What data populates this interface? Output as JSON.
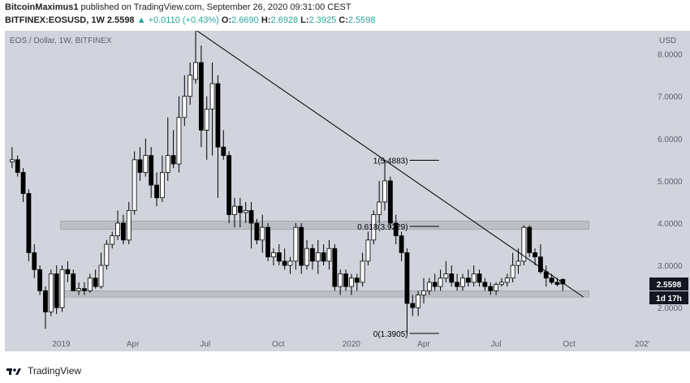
{
  "header": {
    "author": "BitcoinMaximus1",
    "published_text": "published on TradingView.com, September 26, 2020 09:31:00 CEST",
    "symbol": "BITFINEX:EOSUSD, 1W",
    "last": "2.5598",
    "arrow": "▲",
    "change": "+0.0110 (+0.43%)",
    "open_label": "O:",
    "open": "2.6690",
    "high_label": "H:",
    "high": "2.6928",
    "low_label": "L:",
    "low": "2.3925",
    "close_label": "C:",
    "close": "2.5598"
  },
  "footer": {
    "brand": "TradingView"
  },
  "colors": {
    "plot_bg": "#d1d4dc",
    "candle_up": "#ffffff",
    "candle_down": "#000000",
    "zone": "#bdbfc6",
    "price_tag_bg": "#131722",
    "accent_green": "#26a69a"
  },
  "chart_data": {
    "type": "candlestick",
    "title": "EOS / Dollar, 1W, BITFINEX",
    "currency_label": "USD",
    "y_ticks": [
      2.0,
      3.0,
      4.0,
      5.0,
      6.0,
      7.0,
      8.0
    ],
    "y_tick_labels": [
      "2.0000",
      "3.0000",
      "4.0000",
      "5.0000",
      "6.0000",
      "7.0000",
      "8.0000"
    ],
    "ylim": [
      1.35,
      8.55
    ],
    "x_ticks": [
      {
        "date": "2019-01-01",
        "label": "2019"
      },
      {
        "date": "2019-04-01",
        "label": "Apr"
      },
      {
        "date": "2019-07-01",
        "label": "Jul"
      },
      {
        "date": "2019-10-01",
        "label": "Oct"
      },
      {
        "date": "2020-01-01",
        "label": "2020"
      },
      {
        "date": "2020-04-01",
        "label": "Apr"
      },
      {
        "date": "2020-07-01",
        "label": "Jul"
      },
      {
        "date": "2020-10-01",
        "label": "Oct"
      },
      {
        "date": "2021-01-01",
        "label": "202'"
      }
    ],
    "xlim": [
      "2018-10-22",
      "2021-01-10"
    ],
    "last_price_label": "2.5598",
    "countdown_label": "1d 17h",
    "candles": [
      {
        "date": "2018-10-29",
        "o": 5.45,
        "h": 5.8,
        "l": 5.3,
        "c": 5.5
      },
      {
        "date": "2018-11-05",
        "o": 5.5,
        "h": 5.6,
        "l": 5.1,
        "c": 5.2
      },
      {
        "date": "2018-11-12",
        "o": 5.2,
        "h": 5.3,
        "l": 4.5,
        "c": 4.7
      },
      {
        "date": "2018-11-19",
        "o": 4.7,
        "h": 4.8,
        "l": 3.1,
        "c": 3.3
      },
      {
        "date": "2018-11-26",
        "o": 3.3,
        "h": 3.5,
        "l": 2.7,
        "c": 2.9
      },
      {
        "date": "2018-12-03",
        "o": 2.9,
        "h": 3.0,
        "l": 2.3,
        "c": 2.4
      },
      {
        "date": "2018-12-10",
        "o": 2.4,
        "h": 2.5,
        "l": 1.5,
        "c": 1.9
      },
      {
        "date": "2018-12-17",
        "o": 1.9,
        "h": 2.9,
        "l": 1.8,
        "c": 2.8
      },
      {
        "date": "2018-12-24",
        "o": 2.8,
        "h": 3.0,
        "l": 1.85,
        "c": 2.0
      },
      {
        "date": "2018-12-31",
        "o": 2.0,
        "h": 3.0,
        "l": 1.9,
        "c": 2.9
      },
      {
        "date": "2019-01-07",
        "o": 2.9,
        "h": 3.1,
        "l": 2.6,
        "c": 2.8
      },
      {
        "date": "2019-01-14",
        "o": 2.8,
        "h": 2.9,
        "l": 2.4,
        "c": 2.4
      },
      {
        "date": "2019-01-21",
        "o": 2.4,
        "h": 2.6,
        "l": 2.3,
        "c": 2.45
      },
      {
        "date": "2019-01-28",
        "o": 2.45,
        "h": 2.6,
        "l": 2.3,
        "c": 2.4
      },
      {
        "date": "2019-02-04",
        "o": 2.4,
        "h": 2.8,
        "l": 2.35,
        "c": 2.7
      },
      {
        "date": "2019-02-11",
        "o": 2.7,
        "h": 2.9,
        "l": 2.45,
        "c": 2.5
      },
      {
        "date": "2019-02-18",
        "o": 2.5,
        "h": 3.3,
        "l": 2.45,
        "c": 3.0
      },
      {
        "date": "2019-02-25",
        "o": 3.0,
        "h": 3.6,
        "l": 2.9,
        "c": 3.5
      },
      {
        "date": "2019-03-04",
        "o": 3.5,
        "h": 3.8,
        "l": 3.4,
        "c": 3.7
      },
      {
        "date": "2019-03-11",
        "o": 3.7,
        "h": 4.3,
        "l": 3.6,
        "c": 4.0
      },
      {
        "date": "2019-03-18",
        "o": 4.0,
        "h": 4.2,
        "l": 3.5,
        "c": 3.6
      },
      {
        "date": "2019-03-25",
        "o": 3.6,
        "h": 4.5,
        "l": 3.5,
        "c": 4.3
      },
      {
        "date": "2019-04-01",
        "o": 4.3,
        "h": 5.7,
        "l": 4.2,
        "c": 5.5
      },
      {
        "date": "2019-04-08",
        "o": 5.5,
        "h": 5.8,
        "l": 5.0,
        "c": 5.2
      },
      {
        "date": "2019-04-15",
        "o": 5.2,
        "h": 6.0,
        "l": 5.1,
        "c": 5.6
      },
      {
        "date": "2019-04-22",
        "o": 5.6,
        "h": 5.8,
        "l": 4.6,
        "c": 4.9
      },
      {
        "date": "2019-04-29",
        "o": 4.9,
        "h": 5.2,
        "l": 4.4,
        "c": 4.6
      },
      {
        "date": "2019-05-06",
        "o": 4.6,
        "h": 5.6,
        "l": 4.5,
        "c": 5.2
      },
      {
        "date": "2019-05-13",
        "o": 5.2,
        "h": 6.5,
        "l": 5.0,
        "c": 5.6
      },
      {
        "date": "2019-05-20",
        "o": 5.6,
        "h": 6.2,
        "l": 5.3,
        "c": 5.4
      },
      {
        "date": "2019-05-27",
        "o": 5.4,
        "h": 7.0,
        "l": 5.2,
        "c": 6.5
      },
      {
        "date": "2019-06-03",
        "o": 6.5,
        "h": 7.5,
        "l": 6.3,
        "c": 7.0
      },
      {
        "date": "2019-06-10",
        "o": 7.0,
        "h": 7.8,
        "l": 6.8,
        "c": 7.5
      },
      {
        "date": "2019-06-17",
        "o": 7.4,
        "h": 8.6,
        "l": 7.3,
        "c": 7.8
      },
      {
        "date": "2019-06-24",
        "o": 7.8,
        "h": 8.2,
        "l": 5.8,
        "c": 6.2
      },
      {
        "date": "2019-07-01",
        "o": 6.2,
        "h": 7.0,
        "l": 5.5,
        "c": 6.7
      },
      {
        "date": "2019-07-08",
        "o": 6.7,
        "h": 7.8,
        "l": 5.6,
        "c": 7.3
      },
      {
        "date": "2019-07-15",
        "o": 7.3,
        "h": 7.5,
        "l": 4.6,
        "c": 5.8
      },
      {
        "date": "2019-07-22",
        "o": 5.8,
        "h": 6.2,
        "l": 5.5,
        "c": 5.6
      },
      {
        "date": "2019-07-29",
        "o": 5.6,
        "h": 5.7,
        "l": 4.0,
        "c": 4.2
      },
      {
        "date": "2019-08-05",
        "o": 4.2,
        "h": 4.6,
        "l": 3.9,
        "c": 4.4
      },
      {
        "date": "2019-08-12",
        "o": 4.4,
        "h": 4.6,
        "l": 3.9,
        "c": 4.25
      },
      {
        "date": "2019-08-19",
        "o": 4.25,
        "h": 4.5,
        "l": 4.0,
        "c": 4.3
      },
      {
        "date": "2019-08-26",
        "o": 4.3,
        "h": 4.5,
        "l": 3.4,
        "c": 4.0
      },
      {
        "date": "2019-09-02",
        "o": 4.0,
        "h": 4.1,
        "l": 3.5,
        "c": 3.6
      },
      {
        "date": "2019-09-09",
        "o": 3.6,
        "h": 4.2,
        "l": 3.3,
        "c": 3.9
      },
      {
        "date": "2019-09-16",
        "o": 3.9,
        "h": 4.0,
        "l": 3.1,
        "c": 3.2
      },
      {
        "date": "2019-09-23",
        "o": 3.2,
        "h": 3.4,
        "l": 3.0,
        "c": 3.3
      },
      {
        "date": "2019-09-30",
        "o": 3.3,
        "h": 3.5,
        "l": 3.0,
        "c": 3.1
      },
      {
        "date": "2019-10-07",
        "o": 3.1,
        "h": 3.4,
        "l": 2.9,
        "c": 3.0
      },
      {
        "date": "2019-10-14",
        "o": 3.0,
        "h": 3.2,
        "l": 2.8,
        "c": 3.1
      },
      {
        "date": "2019-10-21",
        "o": 3.1,
        "h": 4.0,
        "l": 2.9,
        "c": 3.9
      },
      {
        "date": "2019-10-28",
        "o": 3.9,
        "h": 4.0,
        "l": 2.8,
        "c": 3.0
      },
      {
        "date": "2019-11-04",
        "o": 3.0,
        "h": 3.6,
        "l": 2.9,
        "c": 3.4
      },
      {
        "date": "2019-11-11",
        "o": 3.4,
        "h": 3.5,
        "l": 2.9,
        "c": 3.1
      },
      {
        "date": "2019-11-18",
        "o": 3.1,
        "h": 3.6,
        "l": 2.8,
        "c": 3.3
      },
      {
        "date": "2019-11-25",
        "o": 3.3,
        "h": 3.5,
        "l": 3.0,
        "c": 3.1
      },
      {
        "date": "2019-12-02",
        "o": 3.1,
        "h": 3.6,
        "l": 2.9,
        "c": 3.4
      },
      {
        "date": "2019-12-09",
        "o": 3.4,
        "h": 3.5,
        "l": 2.4,
        "c": 2.5
      },
      {
        "date": "2019-12-16",
        "o": 2.5,
        "h": 2.9,
        "l": 2.3,
        "c": 2.8
      },
      {
        "date": "2019-12-23",
        "o": 2.8,
        "h": 2.9,
        "l": 2.4,
        "c": 2.5
      },
      {
        "date": "2019-12-30",
        "o": 2.5,
        "h": 2.8,
        "l": 2.3,
        "c": 2.7
      },
      {
        "date": "2020-01-06",
        "o": 2.7,
        "h": 2.8,
        "l": 2.4,
        "c": 2.6
      },
      {
        "date": "2020-01-13",
        "o": 2.6,
        "h": 3.3,
        "l": 2.5,
        "c": 3.1
      },
      {
        "date": "2020-01-20",
        "o": 3.1,
        "h": 3.8,
        "l": 3.0,
        "c": 3.6
      },
      {
        "date": "2020-01-27",
        "o": 3.6,
        "h": 4.3,
        "l": 3.5,
        "c": 4.2
      },
      {
        "date": "2020-02-03",
        "o": 4.2,
        "h": 5.0,
        "l": 4.0,
        "c": 4.5
      },
      {
        "date": "2020-02-10",
        "o": 4.5,
        "h": 5.49,
        "l": 4.3,
        "c": 5.0
      },
      {
        "date": "2020-02-17",
        "o": 5.0,
        "h": 5.1,
        "l": 3.9,
        "c": 4.0
      },
      {
        "date": "2020-02-24",
        "o": 4.0,
        "h": 4.2,
        "l": 3.5,
        "c": 3.7
      },
      {
        "date": "2020-03-02",
        "o": 3.7,
        "h": 3.8,
        "l": 3.1,
        "c": 3.3
      },
      {
        "date": "2020-03-09",
        "o": 3.3,
        "h": 3.4,
        "l": 1.39,
        "c": 2.1
      },
      {
        "date": "2020-03-16",
        "o": 2.1,
        "h": 2.3,
        "l": 1.8,
        "c": 2.0
      },
      {
        "date": "2020-03-23",
        "o": 2.0,
        "h": 2.4,
        "l": 1.8,
        "c": 2.3
      },
      {
        "date": "2020-03-30",
        "o": 2.3,
        "h": 2.7,
        "l": 2.1,
        "c": 2.4
      },
      {
        "date": "2020-04-06",
        "o": 2.4,
        "h": 2.7,
        "l": 2.3,
        "c": 2.6
      },
      {
        "date": "2020-04-13",
        "o": 2.6,
        "h": 2.8,
        "l": 2.4,
        "c": 2.5
      },
      {
        "date": "2020-04-20",
        "o": 2.5,
        "h": 2.9,
        "l": 2.4,
        "c": 2.7
      },
      {
        "date": "2020-04-27",
        "o": 2.7,
        "h": 3.1,
        "l": 2.6,
        "c": 2.8
      },
      {
        "date": "2020-05-04",
        "o": 2.8,
        "h": 3.0,
        "l": 2.5,
        "c": 2.6
      },
      {
        "date": "2020-05-11",
        "o": 2.6,
        "h": 2.8,
        "l": 2.4,
        "c": 2.5
      },
      {
        "date": "2020-05-18",
        "o": 2.5,
        "h": 2.8,
        "l": 2.4,
        "c": 2.7
      },
      {
        "date": "2020-05-25",
        "o": 2.7,
        "h": 2.9,
        "l": 2.5,
        "c": 2.6
      },
      {
        "date": "2020-06-01",
        "o": 2.6,
        "h": 3.0,
        "l": 2.5,
        "c": 2.8
      },
      {
        "date": "2020-06-08",
        "o": 2.8,
        "h": 2.9,
        "l": 2.5,
        "c": 2.6
      },
      {
        "date": "2020-06-15",
        "o": 2.6,
        "h": 2.7,
        "l": 2.4,
        "c": 2.5
      },
      {
        "date": "2020-06-22",
        "o": 2.5,
        "h": 2.6,
        "l": 2.3,
        "c": 2.4
      },
      {
        "date": "2020-06-29",
        "o": 2.4,
        "h": 2.6,
        "l": 2.3,
        "c": 2.55
      },
      {
        "date": "2020-07-06",
        "o": 2.55,
        "h": 2.7,
        "l": 2.5,
        "c": 2.6
      },
      {
        "date": "2020-07-13",
        "o": 2.6,
        "h": 2.8,
        "l": 2.5,
        "c": 2.7
      },
      {
        "date": "2020-07-20",
        "o": 2.7,
        "h": 3.3,
        "l": 2.6,
        "c": 3.0
      },
      {
        "date": "2020-07-27",
        "o": 3.0,
        "h": 3.4,
        "l": 2.8,
        "c": 3.1
      },
      {
        "date": "2020-08-03",
        "o": 3.1,
        "h": 3.95,
        "l": 3.0,
        "c": 3.9
      },
      {
        "date": "2020-08-10",
        "o": 3.9,
        "h": 3.95,
        "l": 3.2,
        "c": 3.3
      },
      {
        "date": "2020-08-17",
        "o": 3.3,
        "h": 3.4,
        "l": 3.0,
        "c": 3.2
      },
      {
        "date": "2020-08-24",
        "o": 3.2,
        "h": 3.5,
        "l": 2.8,
        "c": 2.85
      },
      {
        "date": "2020-08-31",
        "o": 2.85,
        "h": 3.0,
        "l": 2.5,
        "c": 2.7
      },
      {
        "date": "2020-09-07",
        "o": 2.7,
        "h": 2.8,
        "l": 2.55,
        "c": 2.6
      },
      {
        "date": "2020-09-14",
        "o": 2.6,
        "h": 2.7,
        "l": 2.5,
        "c": 2.55
      },
      {
        "date": "2020-09-21",
        "o": 2.669,
        "h": 2.6928,
        "l": 2.3925,
        "c": 2.5598
      }
    ],
    "trendline": {
      "start": {
        "date": "2019-06-17",
        "price": 8.6
      },
      "end": {
        "date": "2020-10-19",
        "price": 2.25
      }
    },
    "zones": [
      {
        "from": 2.25,
        "to": 2.4
      },
      {
        "from": 3.85,
        "to": 4.05
      }
    ],
    "fib_levels": [
      {
        "price": 5.4883,
        "label": "1(5.4883)"
      },
      {
        "price": 3.9229,
        "label": "0.618(3.9229)"
      },
      {
        "price": 1.3905,
        "label": "0(1.3905)"
      }
    ]
  }
}
